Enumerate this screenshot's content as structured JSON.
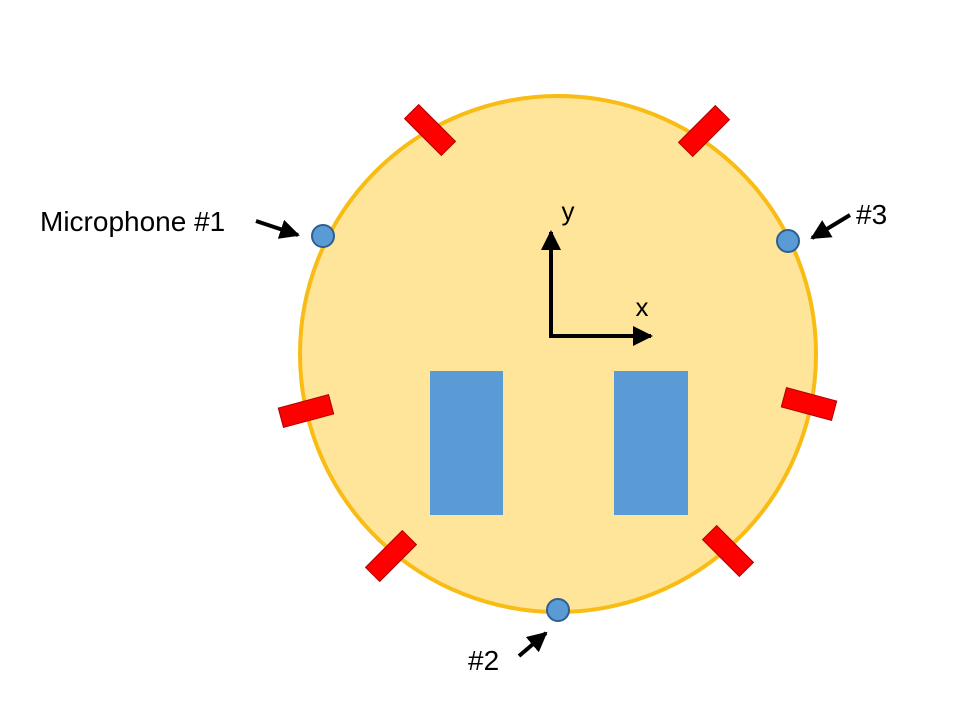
{
  "labels": {
    "mic1": "Microphone #1",
    "mic2": "#2",
    "mic3": "#3",
    "axis_x": "x",
    "axis_y": "y"
  },
  "colors": {
    "body_fill": "#fee599",
    "body_stroke": "#f9bc15",
    "sensor": "#ff0000",
    "microphone": "#5b9bd5",
    "wheel": "#5b9bd5",
    "arrow": "#000000"
  },
  "icons": {
    "microphone": "circle-icon",
    "sensor": "rectangle-icon",
    "wheel": "rectangle-icon",
    "pointer": "arrow-icon"
  }
}
